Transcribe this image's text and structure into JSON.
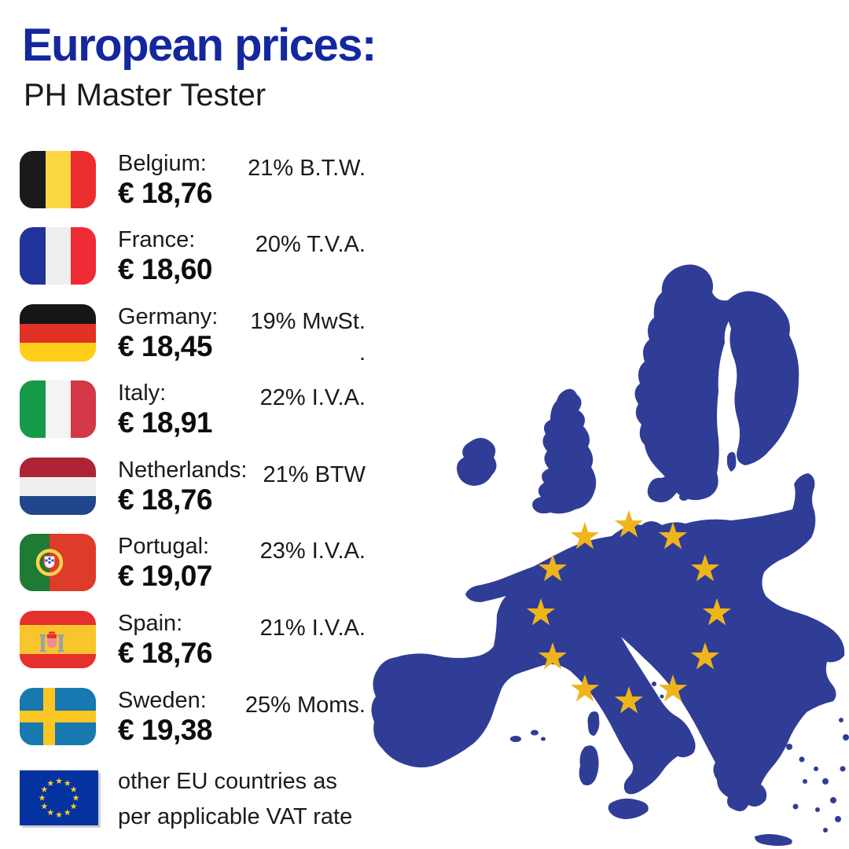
{
  "header": {
    "title": "European prices:",
    "subtitle": "PH Master Tester"
  },
  "rows": [
    {
      "country": "Belgium:",
      "price": "€ 18,76",
      "vat": "21% B.T.W.",
      "flag": "be"
    },
    {
      "country": "France:",
      "price": "€ 18,60",
      "vat": "20% T.V.A.",
      "flag": "fr"
    },
    {
      "country": "Germany:",
      "price": "€ 18,45",
      "vat": "19% MwSt.",
      "vat_line2": ".",
      "flag": "de"
    },
    {
      "country": "Italy:",
      "price": "€ 18,91",
      "vat": "22% I.V.A.",
      "flag": "it"
    },
    {
      "country": "Netherlands:",
      "price": "€ 18,76",
      "vat": "21% BTW",
      "flag": "nl"
    },
    {
      "country": "Portugal:",
      "price": "€ 19,07",
      "vat": "23% I.V.A.",
      "flag": "pt"
    },
    {
      "country": "Spain:",
      "price": "€ 18,76",
      "vat": "21% I.V.A.",
      "flag": "es"
    },
    {
      "country": "Sweden:",
      "price": "€ 19,38",
      "vat": "25% Moms.",
      "flag": "se"
    }
  ],
  "footer": {
    "note_line1": "other EU countries as",
    "note_line2": "per applicable VAT rate",
    "flag": "eu"
  },
  "map": {
    "description": "blue silhouette map of the European Union with circle of 12 gold stars",
    "land_color": "#303D96",
    "star_color": "#F0B41B",
    "star_count": 12
  },
  "eu_flag": {
    "field_color": "#0433A0",
    "star_color": "#FFCC29",
    "star_count": 12
  },
  "colors": {
    "title_blue": "#14279E",
    "body_text": "#1A1A1A"
  }
}
